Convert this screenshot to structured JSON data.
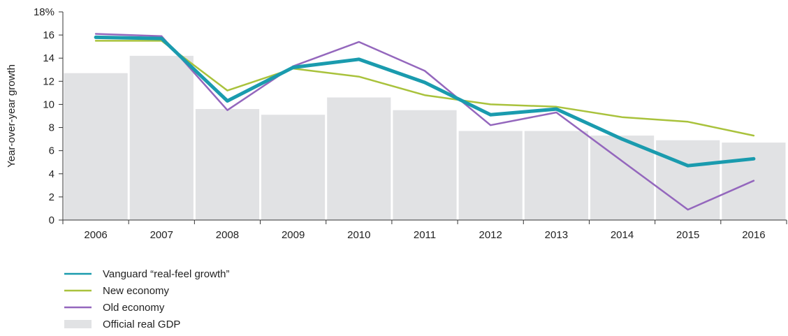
{
  "chart_data": {
    "type": "bar",
    "title": "",
    "xlabel": "",
    "ylabel": "Year-over-year growth",
    "ylim": [
      0,
      18
    ],
    "yticks": [
      0,
      2,
      4,
      6,
      8,
      10,
      12,
      14,
      16,
      18
    ],
    "ytick_suffix_top": "%",
    "grid": false,
    "legend_position": "bottom-left",
    "categories": [
      "2006",
      "2007",
      "2008",
      "2009",
      "2010",
      "2011",
      "2012",
      "2013",
      "2014",
      "2015",
      "2016"
    ],
    "bars": {
      "name": "Official real GDP",
      "color": "#e1e2e4",
      "values": [
        12.7,
        14.2,
        9.6,
        9.1,
        10.6,
        9.5,
        7.7,
        7.7,
        7.3,
        6.9,
        6.7
      ]
    },
    "series": [
      {
        "name": "New economy",
        "color": "#a9c23c",
        "width": 2.5,
        "values": [
          15.5,
          15.5,
          11.2,
          13.1,
          12.4,
          10.8,
          10.0,
          9.8,
          8.9,
          8.5,
          7.3
        ]
      },
      {
        "name": "Old economy",
        "color": "#9467bd",
        "width": 2.5,
        "values": [
          16.1,
          15.9,
          9.5,
          13.3,
          15.4,
          12.9,
          8.2,
          9.3,
          5.1,
          0.9,
          3.4
        ]
      },
      {
        "name": "Vanguard “real-feel growth”",
        "color": "#1a9bae",
        "width": 5,
        "values": [
          15.8,
          15.7,
          10.3,
          13.2,
          13.9,
          11.9,
          9.1,
          9.6,
          7.0,
          4.7,
          5.3
        ]
      }
    ],
    "legend": [
      {
        "label": "Vanguard “real-feel growth”",
        "kind": "line",
        "color": "#1a9bae"
      },
      {
        "label": "New economy",
        "kind": "line",
        "color": "#a9c23c"
      },
      {
        "label": "Old economy",
        "kind": "line",
        "color": "#9467bd"
      },
      {
        "label": "Official real GDP",
        "kind": "box",
        "color": "#e1e2e4"
      }
    ]
  }
}
